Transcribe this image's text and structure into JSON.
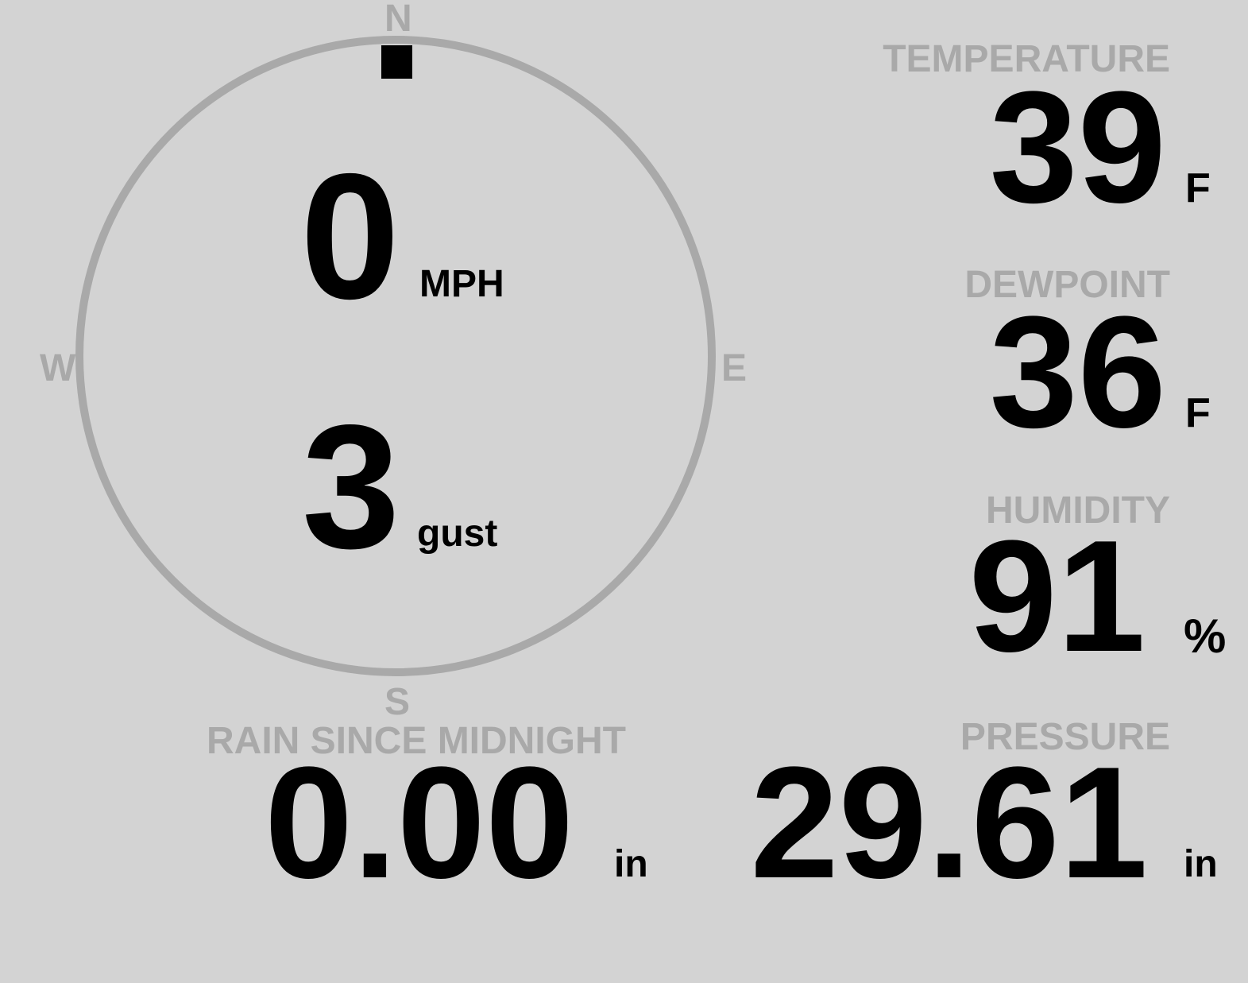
{
  "colors": {
    "background": "#d3d3d3",
    "label": "#a9a9a9",
    "value": "#000000",
    "ring": "#a9a9a9",
    "wind_direction_marker": "#000000"
  },
  "compass": {
    "north": "N",
    "east": "E",
    "south": "S",
    "west": "W",
    "wind_direction_deg": 0
  },
  "wind": {
    "speed": "0",
    "speed_unit": "MPH",
    "gust": "3",
    "gust_unit": "gust"
  },
  "temperature": {
    "label": "TEMPERATURE",
    "value": "39",
    "unit": "F"
  },
  "dewpoint": {
    "label": "DEWPOINT",
    "value": "36",
    "unit": "F"
  },
  "humidity": {
    "label": "HUMIDITY",
    "value": "91",
    "unit": "%"
  },
  "rain": {
    "label": "RAIN SINCE MIDNIGHT",
    "value": "0.00",
    "unit": "in"
  },
  "pressure": {
    "label": "PRESSURE",
    "value": "29.61",
    "unit": "in"
  }
}
